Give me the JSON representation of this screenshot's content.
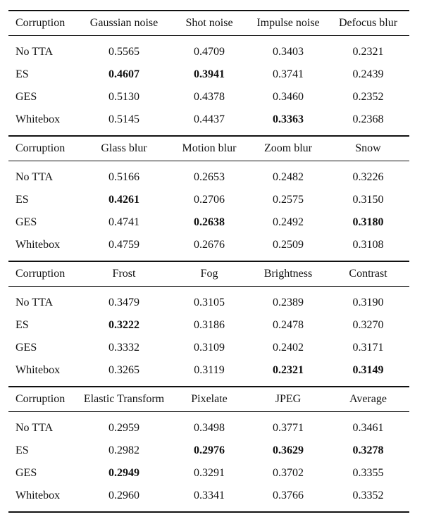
{
  "table": {
    "blocks": [
      {
        "header": [
          "Corruption",
          "Gaussian noise",
          "Shot noise",
          "Impulse noise",
          "Defocus blur"
        ],
        "rows": [
          {
            "label": "No TTA",
            "values": [
              "0.5565",
              "0.4709",
              "0.3403",
              "0.2321"
            ],
            "bold": [
              false,
              false,
              false,
              false
            ]
          },
          {
            "label": "ES",
            "values": [
              "0.4607",
              "0.3941",
              "0.3741",
              "0.2439"
            ],
            "bold": [
              true,
              true,
              false,
              false
            ]
          },
          {
            "label": "GES",
            "values": [
              "0.5130",
              "0.4378",
              "0.3460",
              "0.2352"
            ],
            "bold": [
              false,
              false,
              false,
              false
            ]
          },
          {
            "label": "Whitebox",
            "values": [
              "0.5145",
              "0.4437",
              "0.3363",
              "0.2368"
            ],
            "bold": [
              false,
              false,
              true,
              false
            ]
          }
        ]
      },
      {
        "header": [
          "Corruption",
          "Glass blur",
          "Motion blur",
          "Zoom blur",
          "Snow"
        ],
        "rows": [
          {
            "label": "No TTA",
            "values": [
              "0.5166",
              "0.2653",
              "0.2482",
              "0.3226"
            ],
            "bold": [
              false,
              false,
              false,
              false
            ]
          },
          {
            "label": "ES",
            "values": [
              "0.4261",
              "0.2706",
              "0.2575",
              "0.3150"
            ],
            "bold": [
              true,
              false,
              false,
              false
            ]
          },
          {
            "label": "GES",
            "values": [
              "0.4741",
              "0.2638",
              "0.2492",
              "0.3180"
            ],
            "bold": [
              false,
              true,
              false,
              true
            ]
          },
          {
            "label": "Whitebox",
            "values": [
              "0.4759",
              "0.2676",
              "0.2509",
              "0.3108"
            ],
            "bold": [
              false,
              false,
              false,
              false
            ]
          }
        ]
      },
      {
        "header": [
          "Corruption",
          "Frost",
          "Fog",
          "Brightness",
          "Contrast"
        ],
        "rows": [
          {
            "label": "No TTA",
            "values": [
              "0.3479",
              "0.3105",
              "0.2389",
              "0.3190"
            ],
            "bold": [
              false,
              false,
              false,
              false
            ]
          },
          {
            "label": "ES",
            "values": [
              "0.3222",
              "0.3186",
              "0.2478",
              "0.3270"
            ],
            "bold": [
              true,
              false,
              false,
              false
            ]
          },
          {
            "label": "GES",
            "values": [
              "0.3332",
              "0.3109",
              "0.2402",
              "0.3171"
            ],
            "bold": [
              false,
              false,
              false,
              false
            ]
          },
          {
            "label": "Whitebox",
            "values": [
              "0.3265",
              "0.3119",
              "0.2321",
              "0.3149"
            ],
            "bold": [
              false,
              false,
              true,
              true
            ]
          }
        ]
      },
      {
        "header": [
          "Corruption",
          "Elastic Transform",
          "Pixelate",
          "JPEG",
          "Average"
        ],
        "rows": [
          {
            "label": "No TTA",
            "values": [
              "0.2959",
              "0.3498",
              "0.3771",
              "0.3461"
            ],
            "bold": [
              false,
              false,
              false,
              false
            ]
          },
          {
            "label": "ES",
            "values": [
              "0.2982",
              "0.2976",
              "0.3629",
              "0.3278"
            ],
            "bold": [
              false,
              true,
              true,
              true
            ]
          },
          {
            "label": "GES",
            "values": [
              "0.2949",
              "0.3291",
              "0.3702",
              "0.3355"
            ],
            "bold": [
              true,
              false,
              false,
              false
            ]
          },
          {
            "label": "Whitebox",
            "values": [
              "0.2960",
              "0.3341",
              "0.3766",
              "0.3352"
            ],
            "bold": [
              false,
              false,
              false,
              false
            ]
          }
        ]
      }
    ]
  }
}
